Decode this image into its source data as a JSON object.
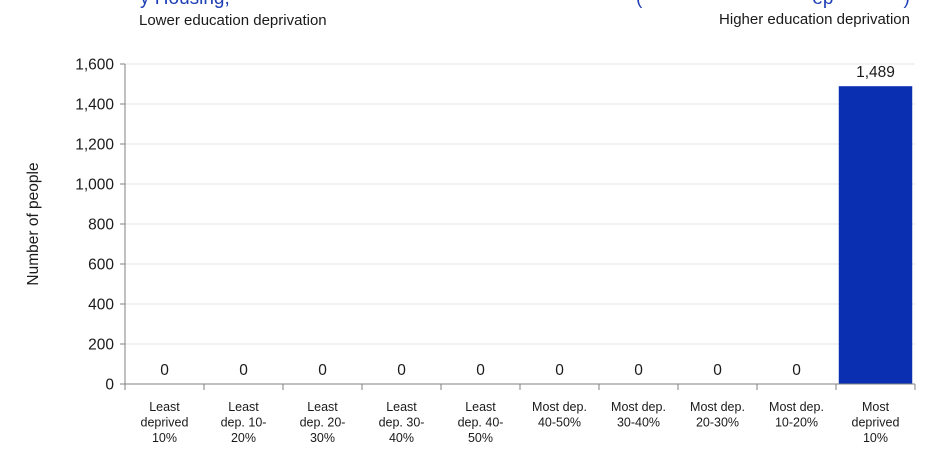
{
  "header": {
    "title_left": "y Housing,",
    "title_right": "(",
    "title_right_end": "ep",
    "title_right_tail": ")",
    "lower_label": "Lower education deprivation",
    "higher_label": "Higher education deprivation"
  },
  "colors": {
    "bar": "#0a2fb0",
    "grid": "#e6e6e6",
    "axis": "#808080",
    "title": "#1f3fb5"
  },
  "chart_data": {
    "type": "bar",
    "ylabel": "Number of people",
    "xlabel": "",
    "ylim": [
      0,
      1600
    ],
    "yticks": [
      0,
      200,
      400,
      600,
      800,
      1000,
      1200,
      1400,
      1600
    ],
    "ytick_labels": [
      "0",
      "200",
      "400",
      "600",
      "800",
      "1,000",
      "1,200",
      "1,400",
      "1,600"
    ],
    "grid": true,
    "categories": [
      [
        "Least",
        "deprived",
        "10%"
      ],
      [
        "Least",
        "dep. 10-",
        "20%"
      ],
      [
        "Least",
        "dep. 20-",
        "30%"
      ],
      [
        "Least",
        "dep. 30-",
        "40%"
      ],
      [
        "Least",
        "dep. 40-",
        "50%"
      ],
      [
        "Most dep.",
        "40-50%"
      ],
      [
        "Most dep.",
        "30-40%"
      ],
      [
        "Most dep.",
        "20-30%"
      ],
      [
        "Most dep.",
        "10-20%"
      ],
      [
        "Most",
        "deprived",
        "10%"
      ]
    ],
    "values": [
      0,
      0,
      0,
      0,
      0,
      0,
      0,
      0,
      0,
      1489
    ],
    "value_labels": [
      "0",
      "0",
      "0",
      "0",
      "0",
      "0",
      "0",
      "0",
      "0",
      "1,489"
    ]
  }
}
